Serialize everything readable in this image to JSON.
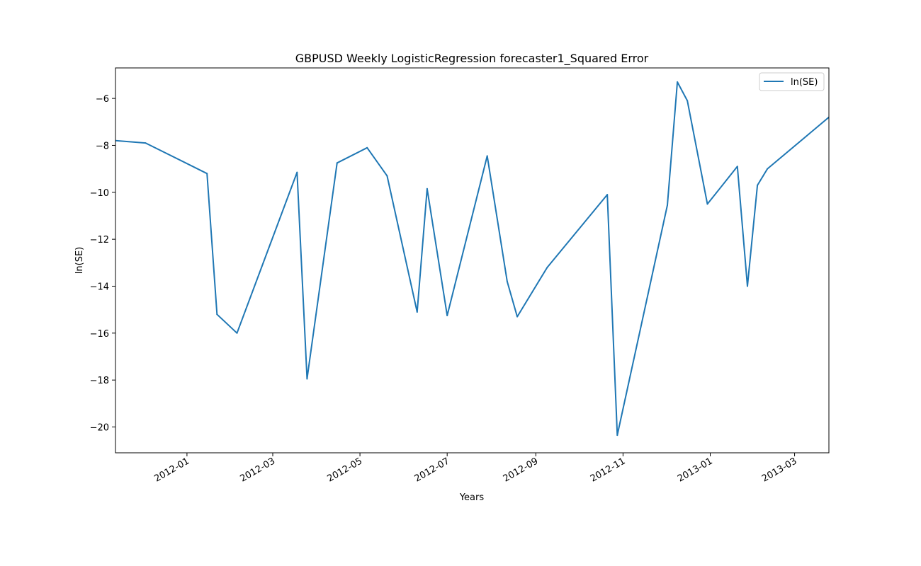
{
  "chart_data": {
    "type": "line",
    "title": "GBPUSD Weekly LogisticRegression forecaster1_Squared Error",
    "xlabel": "Years",
    "ylabel": "ln(SE)",
    "xlim": [
      "2011-11-12",
      "2013-03-25"
    ],
    "ylim": [
      -21.1,
      -4.7
    ],
    "x_ticks": [
      "2012-01-01",
      "2012-03-01",
      "2012-05-01",
      "2012-07-01",
      "2012-09-01",
      "2012-11-01",
      "2013-01-01",
      "2013-03-01"
    ],
    "x_tick_labels": [
      "2012-01",
      "2012-03",
      "2012-05",
      "2012-07",
      "2012-09",
      "2012-11",
      "2013-01",
      "2013-03"
    ],
    "y_ticks": [
      -20,
      -18,
      -16,
      -14,
      -12,
      -10,
      -8,
      -6
    ],
    "y_tick_labels": [
      "−20",
      "−18",
      "−16",
      "−14",
      "−12",
      "−10",
      "−8",
      "−6"
    ],
    "grid": false,
    "legend_position": "top-right",
    "series": [
      {
        "name": "ln(SE)",
        "color": "#1f77b4",
        "points": [
          {
            "x": "2011-11-12",
            "y": -7.8
          },
          {
            "x": "2011-12-03",
            "y": -7.9
          },
          {
            "x": "2012-01-15",
            "y": -9.2
          },
          {
            "x": "2012-01-22",
            "y": -15.2
          },
          {
            "x": "2012-02-05",
            "y": -16.0
          },
          {
            "x": "2012-03-18",
            "y": -9.15
          },
          {
            "x": "2012-03-25",
            "y": -17.95
          },
          {
            "x": "2012-04-15",
            "y": -8.75
          },
          {
            "x": "2012-05-06",
            "y": -8.1
          },
          {
            "x": "2012-05-20",
            "y": -9.3
          },
          {
            "x": "2012-06-10",
            "y": -15.1
          },
          {
            "x": "2012-06-17",
            "y": -9.85
          },
          {
            "x": "2012-07-01",
            "y": -15.25
          },
          {
            "x": "2012-07-29",
            "y": -8.45
          },
          {
            "x": "2012-08-12",
            "y": -13.8
          },
          {
            "x": "2012-08-19",
            "y": -15.3
          },
          {
            "x": "2012-09-09",
            "y": -13.2
          },
          {
            "x": "2012-10-21",
            "y": -10.1
          },
          {
            "x": "2012-10-28",
            "y": -20.35
          },
          {
            "x": "2012-12-02",
            "y": -10.55
          },
          {
            "x": "2012-12-09",
            "y": -5.3
          },
          {
            "x": "2012-12-16",
            "y": -6.1
          },
          {
            "x": "2012-12-30",
            "y": -10.5
          },
          {
            "x": "2013-01-20",
            "y": -8.9
          },
          {
            "x": "2013-01-27",
            "y": -14.0
          },
          {
            "x": "2013-02-03",
            "y": -9.7
          },
          {
            "x": "2013-02-10",
            "y": -9.0
          },
          {
            "x": "2013-03-25",
            "y": -6.8
          }
        ]
      }
    ]
  }
}
